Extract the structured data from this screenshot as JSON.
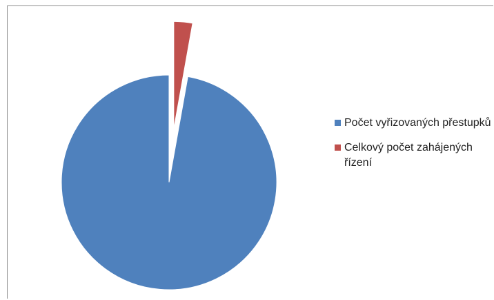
{
  "chart_data": {
    "type": "pie",
    "categories": [
      "Počet vyřizovaných přestupků",
      "Celkový počet zahájených řízení"
    ],
    "values": [
      97.2,
      2.8
    ],
    "colors": [
      "#4f81bd",
      "#c0504d"
    ],
    "exploded": [
      false,
      true
    ],
    "legend_position": "right"
  },
  "legend": {
    "items": [
      {
        "label": "Počet vyřizovaných přestupků",
        "color": "#4f81bd"
      },
      {
        "label": "Celkový počet zahájených řízení",
        "color": "#c0504d"
      }
    ]
  }
}
